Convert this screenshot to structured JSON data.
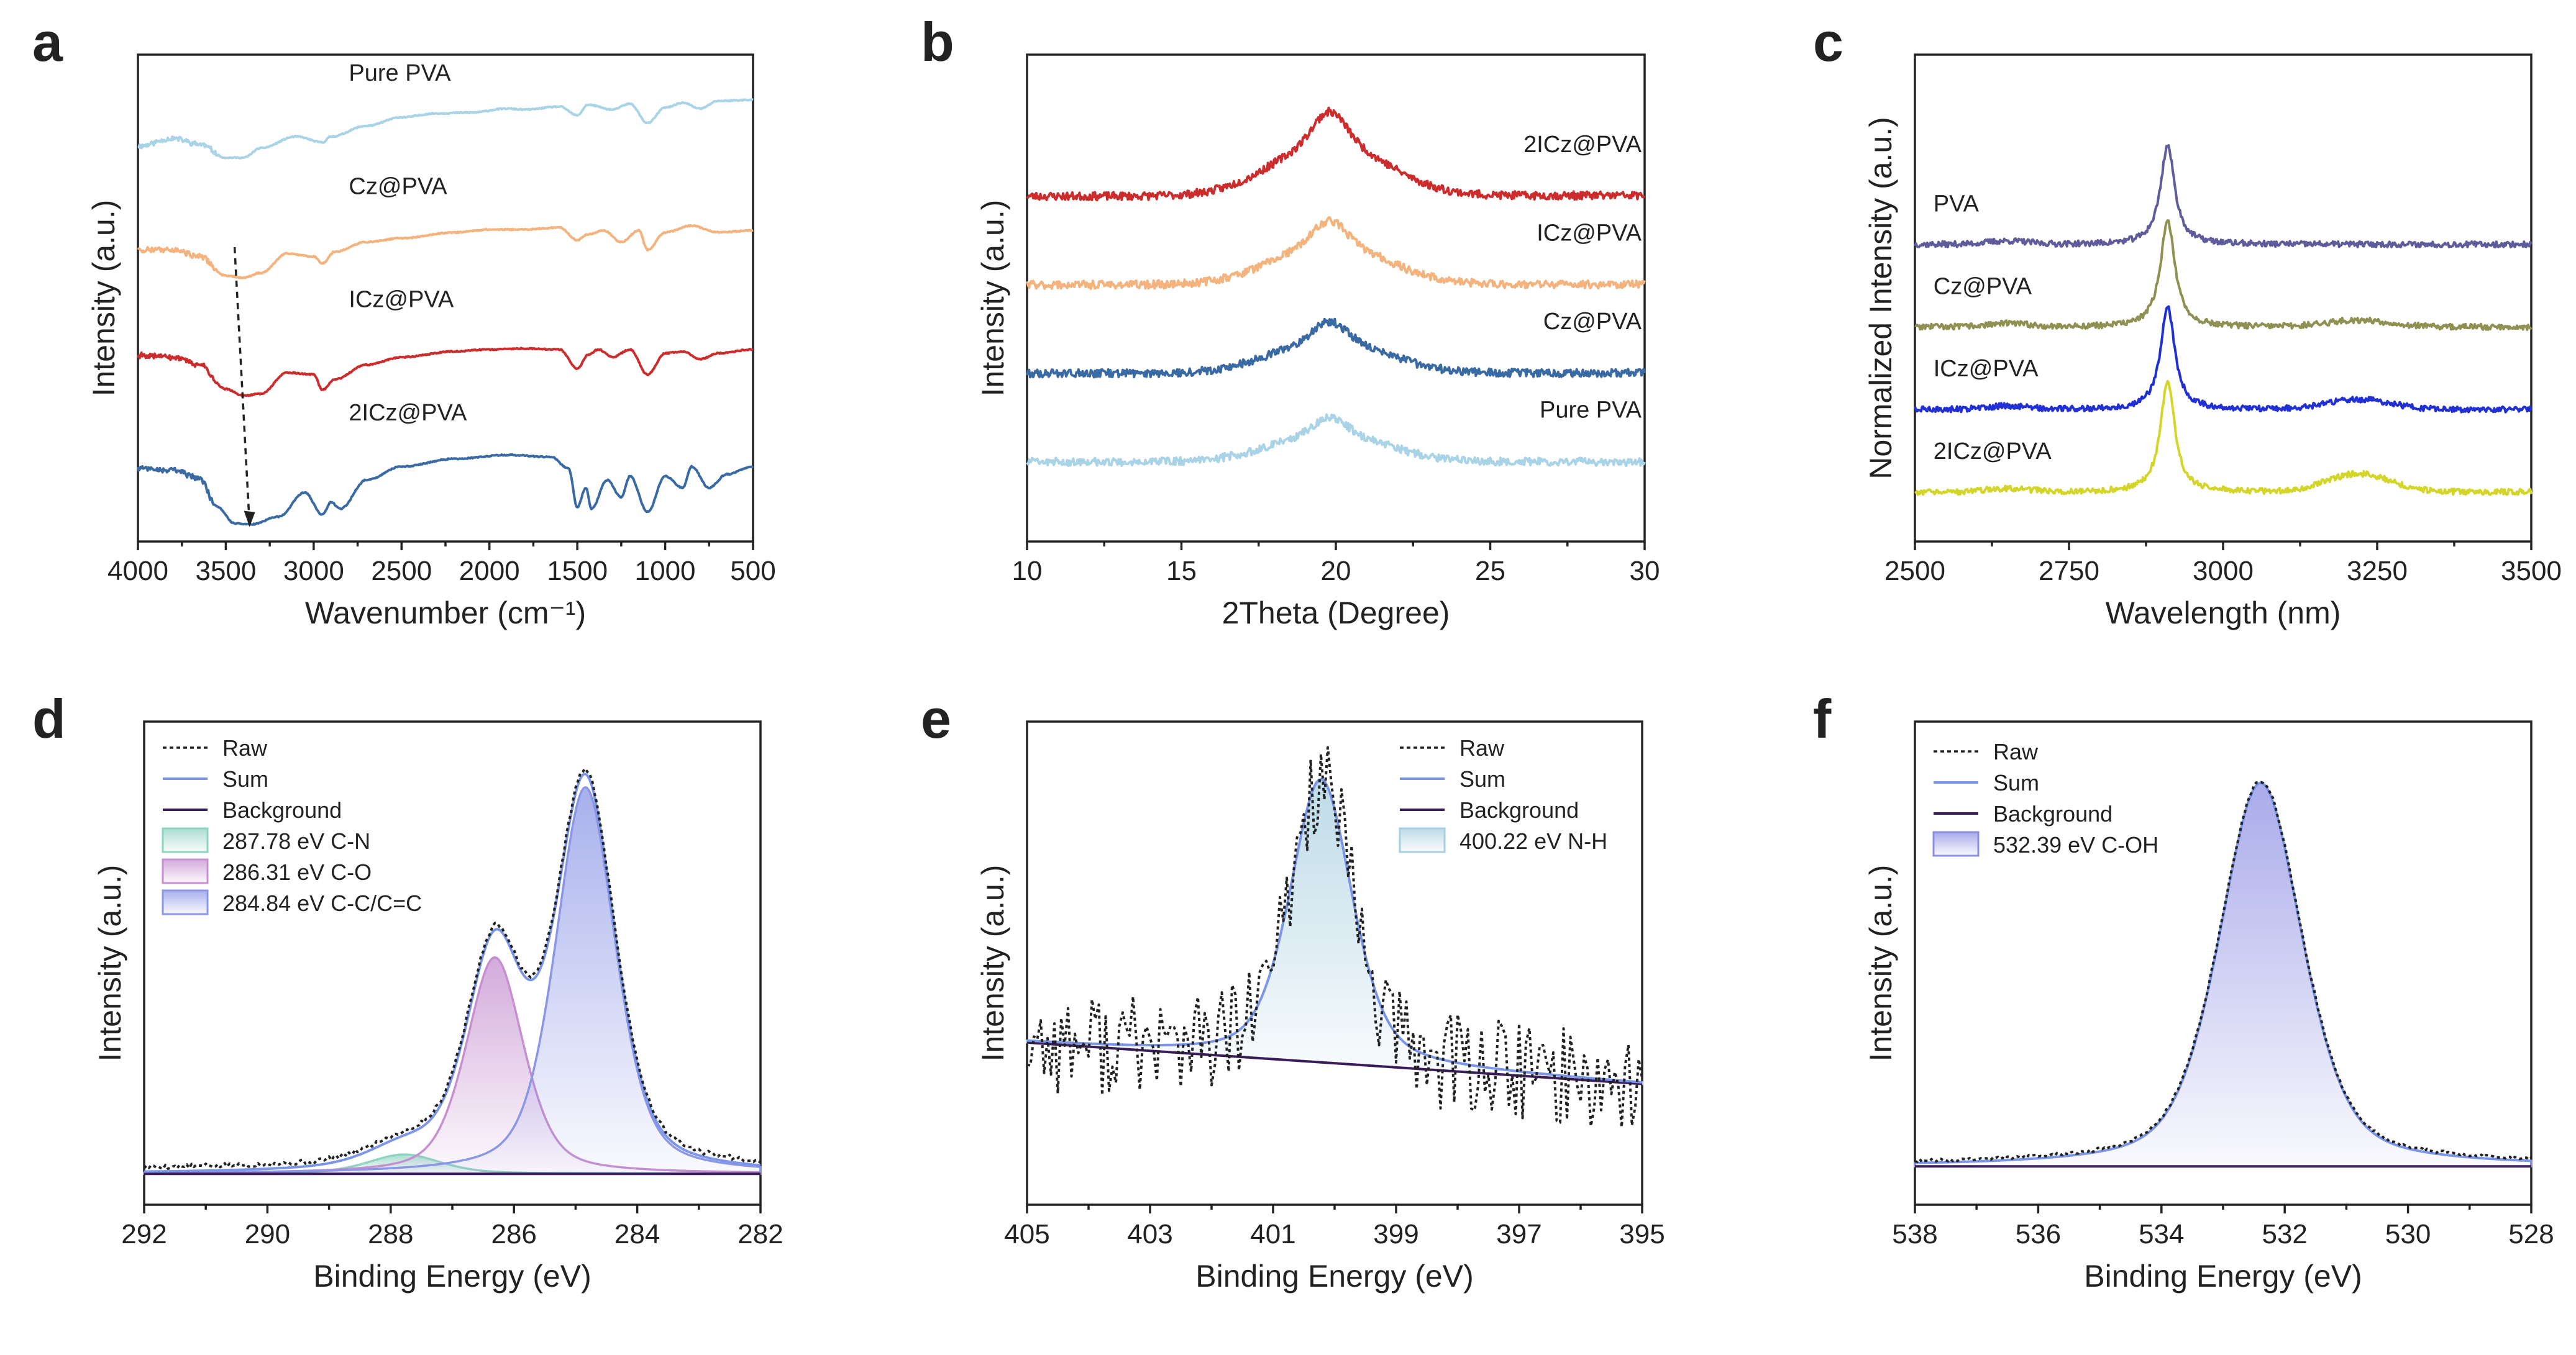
{
  "colors": {
    "pure_pva": "#a9d3e6",
    "cz_pva": "#f4b27d",
    "icz_pva": "#cc2c2c",
    "twoicz_pva": "#3a6aa4",
    "raman_pva": "#5f5c9b",
    "raman_cz": "#8e9151",
    "raman_icz": "#2030d4",
    "raman_2icz": "#d3d628",
    "raw": "#222222",
    "sum": "#7b95e8",
    "background": "#3a1c5a",
    "cn_comp": "#8fd4c1",
    "co_comp": "#c58fd0",
    "cc_comp": "#8b96e6",
    "nh_comp": "#a8cfe0",
    "coh_comp": "#8d8fe3"
  },
  "chart_data": [
    {
      "panel": "a",
      "type": "line",
      "title": "",
      "xlabel": "Wavenumber (cm⁻¹)",
      "ylabel": "Intensity (a.u.)",
      "xlim": [
        4000,
        500
      ],
      "xticks": [
        4000,
        3500,
        3000,
        2500,
        2000,
        1500,
        1000,
        500
      ],
      "annotation": "arrow from 3450 to 3370 cm⁻¹ marking O–H band shift",
      "series": [
        {
          "name": "Pure PVA",
          "color_key": "pure_pva",
          "offset": 3,
          "points": [
            [
              4000,
              0.52
            ],
            [
              3800,
              0.6
            ],
            [
              3650,
              0.54
            ],
            [
              3500,
              0.4
            ],
            [
              3400,
              0.4
            ],
            [
              3300,
              0.5
            ],
            [
              3100,
              0.62
            ],
            [
              2950,
              0.56
            ],
            [
              2900,
              0.62
            ],
            [
              2700,
              0.73
            ],
            [
              2500,
              0.82
            ],
            [
              2300,
              0.86
            ],
            [
              2100,
              0.87
            ],
            [
              1900,
              0.91
            ],
            [
              1800,
              0.9
            ],
            [
              1600,
              0.93
            ],
            [
              1500,
              0.84
            ],
            [
              1440,
              0.95
            ],
            [
              1300,
              0.9
            ],
            [
              1200,
              0.96
            ],
            [
              1100,
              0.76
            ],
            [
              1000,
              0.92
            ],
            [
              900,
              0.97
            ],
            [
              800,
              0.91
            ],
            [
              700,
              0.99
            ],
            [
              500,
              1.0
            ]
          ]
        },
        {
          "name": "Cz@PVA",
          "color_key": "cz_pva",
          "offset": 2,
          "points": [
            [
              4000,
              0.62
            ],
            [
              3800,
              0.62
            ],
            [
              3650,
              0.55
            ],
            [
              3500,
              0.35
            ],
            [
              3400,
              0.33
            ],
            [
              3300,
              0.38
            ],
            [
              3150,
              0.58
            ],
            [
              3000,
              0.55
            ],
            [
              2950,
              0.48
            ],
            [
              2880,
              0.6
            ],
            [
              2700,
              0.7
            ],
            [
              2500,
              0.74
            ],
            [
              2200,
              0.8
            ],
            [
              2000,
              0.83
            ],
            [
              1800,
              0.83
            ],
            [
              1600,
              0.85
            ],
            [
              1500,
              0.72
            ],
            [
              1440,
              0.78
            ],
            [
              1350,
              0.82
            ],
            [
              1250,
              0.7
            ],
            [
              1150,
              0.82
            ],
            [
              1100,
              0.62
            ],
            [
              1000,
              0.8
            ],
            [
              850,
              0.87
            ],
            [
              700,
              0.8
            ],
            [
              500,
              0.82
            ]
          ]
        },
        {
          "name": "ICz@PVA",
          "color_key": "icz_pva",
          "offset": 1,
          "points": [
            [
              4000,
              0.7
            ],
            [
              3800,
              0.68
            ],
            [
              3650,
              0.6
            ],
            [
              3500,
              0.35
            ],
            [
              3400,
              0.28
            ],
            [
              3300,
              0.3
            ],
            [
              3150,
              0.52
            ],
            [
              3000,
              0.5
            ],
            [
              2950,
              0.34
            ],
            [
              2880,
              0.45
            ],
            [
              2700,
              0.6
            ],
            [
              2500,
              0.68
            ],
            [
              2200,
              0.74
            ],
            [
              2000,
              0.76
            ],
            [
              1800,
              0.77
            ],
            [
              1600,
              0.76
            ],
            [
              1500,
              0.56
            ],
            [
              1440,
              0.7
            ],
            [
              1380,
              0.76
            ],
            [
              1300,
              0.68
            ],
            [
              1200,
              0.76
            ],
            [
              1100,
              0.5
            ],
            [
              1000,
              0.72
            ],
            [
              900,
              0.74
            ],
            [
              800,
              0.66
            ],
            [
              700,
              0.72
            ],
            [
              500,
              0.76
            ]
          ]
        },
        {
          "name": "2ICz@PVA",
          "color_key": "twoicz_pva",
          "offset": 0,
          "points": [
            [
              4000,
              0.7
            ],
            [
              3800,
              0.68
            ],
            [
              3650,
              0.6
            ],
            [
              3550,
              0.3
            ],
            [
              3450,
              0.13
            ],
            [
              3350,
              0.12
            ],
            [
              3200,
              0.2
            ],
            [
              3050,
              0.45
            ],
            [
              2950,
              0.22
            ],
            [
              2900,
              0.35
            ],
            [
              2850,
              0.28
            ],
            [
              2700,
              0.58
            ],
            [
              2500,
              0.72
            ],
            [
              2200,
              0.8
            ],
            [
              1900,
              0.84
            ],
            [
              1650,
              0.82
            ],
            [
              1550,
              0.7
            ],
            [
              1500,
              0.3
            ],
            [
              1450,
              0.5
            ],
            [
              1420,
              0.28
            ],
            [
              1330,
              0.58
            ],
            [
              1250,
              0.4
            ],
            [
              1200,
              0.62
            ],
            [
              1100,
              0.25
            ],
            [
              1000,
              0.62
            ],
            [
              900,
              0.5
            ],
            [
              850,
              0.72
            ],
            [
              750,
              0.5
            ],
            [
              650,
              0.64
            ],
            [
              500,
              0.72
            ]
          ]
        }
      ]
    },
    {
      "panel": "b",
      "type": "line",
      "title": "",
      "xlabel": "2Theta (Degree)",
      "ylabel": "Intensity (a.u.)",
      "xlim": [
        10,
        30
      ],
      "xticks": [
        10,
        15,
        20,
        25,
        30
      ],
      "peak_center": 19.8,
      "series": [
        {
          "name": "2ICz@PVA",
          "color_key": "icz_pva",
          "baseline": 3.0,
          "amplitude": 0.95,
          "baseline_slope": 0.05
        },
        {
          "name": "ICz@PVA",
          "color_key": "cz_pva",
          "baseline": 2.0,
          "amplitude": 0.72,
          "baseline_slope": 0.03
        },
        {
          "name": "Cz@PVA",
          "color_key": "twoicz_pva",
          "baseline": 1.0,
          "amplitude": 0.58,
          "baseline_slope": 0.02
        },
        {
          "name": "Pure PVA",
          "color_key": "pure_pva",
          "baseline": 0.0,
          "amplitude": 0.5,
          "baseline_slope": 0.0
        }
      ]
    },
    {
      "panel": "c",
      "type": "line",
      "title": "",
      "xlabel": "Wavelength (nm)",
      "ylabel": "Normalized Intensity (a.u.)",
      "xlim": [
        2500,
        3500
      ],
      "xticks": [
        2500,
        2750,
        3000,
        3250,
        3500
      ],
      "peak_center": 2910,
      "series": [
        {
          "name": "PVA",
          "color_key": "raman_pva",
          "baseline": 3.0,
          "amplitude": 1.2,
          "secondary_peak": 0.0
        },
        {
          "name": "Cz@PVA",
          "color_key": "raman_cz",
          "baseline": 2.0,
          "amplitude": 1.3,
          "secondary_peak": 0.08
        },
        {
          "name": "ICz@PVA",
          "color_key": "raman_icz",
          "baseline": 1.0,
          "amplitude": 1.25,
          "secondary_peak": 0.12
        },
        {
          "name": "2ICz@PVA",
          "color_key": "raman_2icz",
          "baseline": 0.0,
          "amplitude": 1.35,
          "secondary_peak": 0.22
        }
      ]
    },
    {
      "panel": "d",
      "type": "line",
      "title": "",
      "xlabel": "Binding Energy (eV)",
      "ylabel": "Intensity (a.u.)",
      "xlim": [
        292,
        282
      ],
      "xticks": [
        292,
        290,
        288,
        286,
        284,
        282
      ],
      "legend": [
        "Raw",
        "Sum",
        "Background",
        "287.78 eV C-N",
        "286.31 eV C-O",
        "284.84 eV C-C/C=C"
      ],
      "background_level": 0.01,
      "components": [
        {
          "label": "287.78 eV C-N",
          "center": 287.78,
          "height": 0.05,
          "fwhm": 1.4,
          "color_key": "cn_comp"
        },
        {
          "label": "286.31 eV C-O",
          "center": 286.31,
          "height": 0.56,
          "fwhm": 1.1,
          "color_key": "co_comp"
        },
        {
          "label": "284.84 eV C-C/C=C",
          "center": 284.84,
          "height": 1.0,
          "fwhm": 1.15,
          "color_key": "cc_comp"
        }
      ]
    },
    {
      "panel": "e",
      "type": "line",
      "title": "",
      "xlabel": "Binding Energy (eV)",
      "ylabel": "Intensity (a.u.)",
      "xlim": [
        405,
        395
      ],
      "xticks": [
        405,
        403,
        401,
        399,
        397,
        395
      ],
      "legend": [
        "Raw",
        "Sum",
        "Background",
        "400.22 eV N-H"
      ],
      "background_range": [
        0.22,
        0.1
      ],
      "components": [
        {
          "label": "400.22 eV N-H",
          "center": 400.22,
          "height": 0.82,
          "fwhm": 1.2,
          "color_key": "nh_comp"
        }
      ]
    },
    {
      "panel": "f",
      "type": "line",
      "title": "",
      "xlabel": "Binding Energy (eV)",
      "ylabel": "Intensity (a.u.)",
      "xlim": [
        538,
        528
      ],
      "xticks": [
        538,
        536,
        534,
        532,
        530,
        528
      ],
      "legend": [
        "Raw",
        "Sum",
        "Background",
        "532.39 eV C-OH"
      ],
      "background_level": 0.02,
      "components": [
        {
          "label": "532.39 eV C-OH",
          "center": 532.39,
          "height": 1.0,
          "fwhm": 1.6,
          "color_key": "coh_comp"
        }
      ]
    }
  ]
}
